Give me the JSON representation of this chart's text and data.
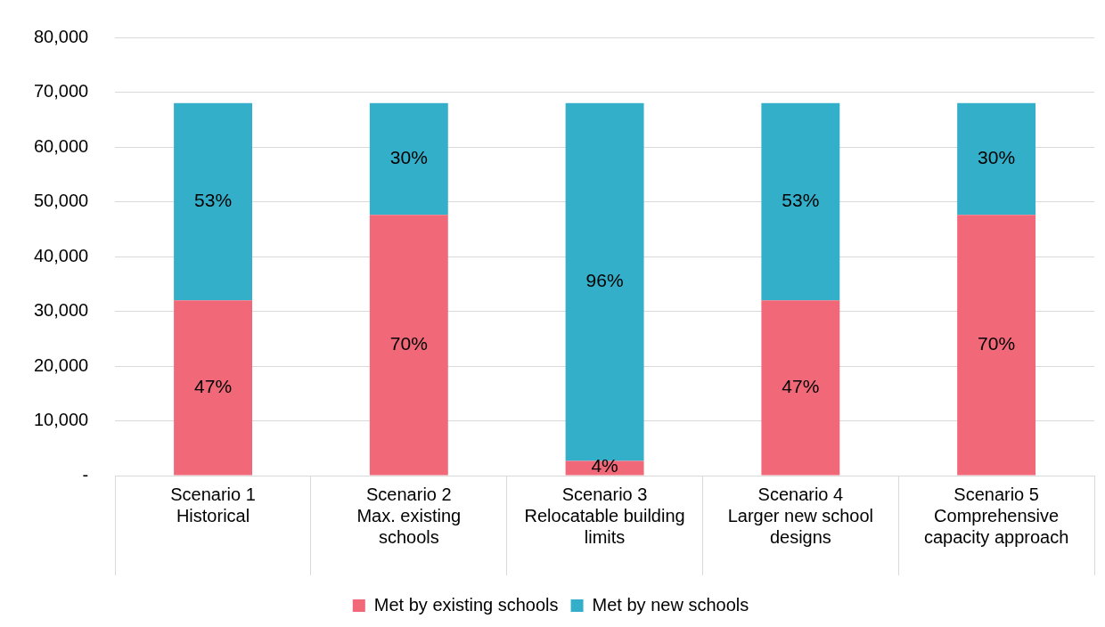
{
  "chart_data": {
    "type": "bar",
    "stacked": true,
    "categories": [
      "Scenario 1\nHistorical",
      "Scenario 2\nMax. existing schools",
      "Scenario 3\nRelocatable building limits",
      "Scenario 4\nLarger new school designs",
      "Scenario 5\nComprehensive capacity approach"
    ],
    "series": [
      {
        "name": "Met by existing schools",
        "color": "#f16978",
        "values": [
          32000,
          47600,
          2700,
          32000,
          47600
        ]
      },
      {
        "name": "Met by new schools",
        "color": "#34afc9",
        "values": [
          36000,
          20400,
          65300,
          36000,
          20400
        ]
      }
    ],
    "annotations": [
      "47%",
      "53%",
      "70%",
      "30%",
      "4%",
      "96%",
      "47%",
      "53%",
      "70%",
      "30%"
    ],
    "ylim": [
      0,
      80000
    ],
    "yticks": [
      {
        "value": 0,
        "label": "-"
      },
      {
        "value": 10000,
        "label": "10,000"
      },
      {
        "value": 20000,
        "label": "20,000"
      },
      {
        "value": 30000,
        "label": "30,000"
      },
      {
        "value": 40000,
        "label": "40,000"
      },
      {
        "value": 50000,
        "label": "50,000"
      },
      {
        "value": 60000,
        "label": "60,000"
      },
      {
        "value": 70000,
        "label": "70,000"
      },
      {
        "value": 80000,
        "label": "80,000"
      }
    ],
    "grid": "y",
    "legend": "bottom"
  }
}
